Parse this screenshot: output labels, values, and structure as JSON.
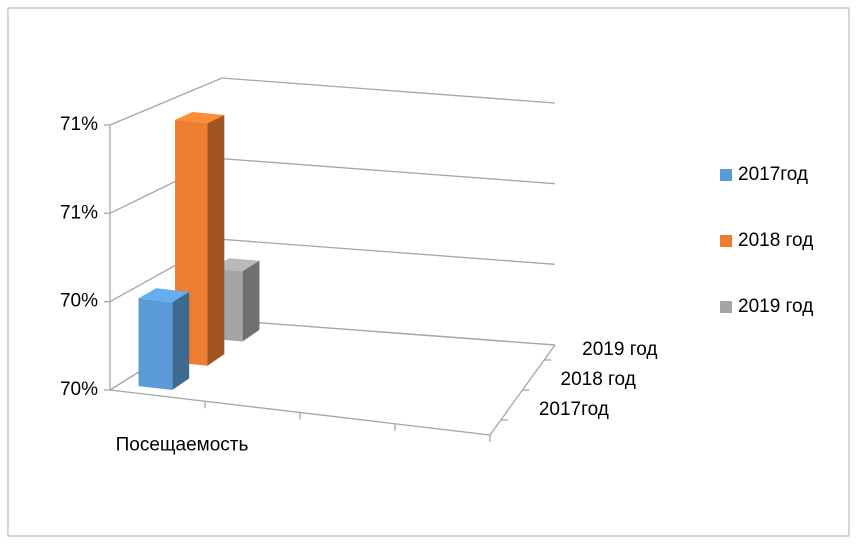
{
  "chart_data": {
    "type": "bar3d",
    "categories": [
      "Посещаемость"
    ],
    "series": [
      {
        "name": "2017год",
        "color": "#5b9bd5",
        "values": [
          70.4
        ]
      },
      {
        "name": "2018 год",
        "color": "#ed7d31",
        "values": [
          70.77
        ]
      },
      {
        "name": "2019 год",
        "color": "#a5a5a5",
        "values": [
          70.37
        ]
      }
    ],
    "ylim": [
      70.2,
      70.8
    ],
    "yticks": [
      {
        "value": 70.2,
        "label": "70%"
      },
      {
        "value": 70.4,
        "label": "70%"
      },
      {
        "value": 70.6,
        "label": "71%"
      },
      {
        "value": 70.8,
        "label": "71%"
      }
    ],
    "grid": true,
    "legend": "right"
  }
}
